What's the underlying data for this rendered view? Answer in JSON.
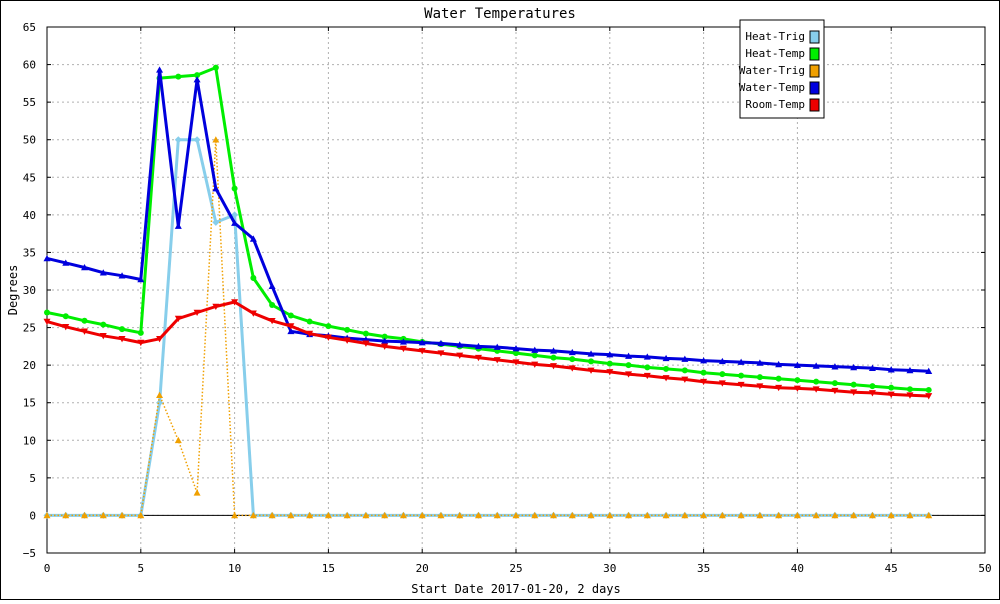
{
  "chart_data": {
    "type": "line",
    "title": "Water Temperatures",
    "xlabel": "Start Date 2017-01-20, 2 days",
    "ylabel": "Degrees",
    "xlim": [
      0,
      50
    ],
    "ylim": [
      -5,
      65
    ],
    "x_ticks": [
      0,
      5,
      10,
      15,
      20,
      25,
      30,
      35,
      40,
      45,
      50
    ],
    "y_ticks": [
      -5,
      0,
      5,
      10,
      15,
      20,
      25,
      30,
      35,
      40,
      45,
      50,
      55,
      60,
      65
    ],
    "grid": true,
    "legend_position": "top-right",
    "series": [
      {
        "name": "Heat-Trig",
        "color": "#87ceeb",
        "line_style": "solid",
        "marker": "diamond",
        "x": [
          0,
          1,
          2,
          3,
          4,
          5,
          6,
          7,
          8,
          9,
          10,
          11,
          12,
          13,
          14,
          15,
          16,
          17,
          18,
          19,
          20,
          21,
          22,
          23,
          24,
          25,
          26,
          27,
          28,
          29,
          30,
          31,
          32,
          33,
          34,
          35,
          36,
          37,
          38,
          39,
          40,
          41,
          42,
          43,
          44,
          45,
          46,
          47
        ],
        "values": [
          0,
          0,
          0,
          0,
          0,
          0,
          15,
          50,
          50,
          39,
          40,
          0,
          0,
          0,
          0,
          0,
          0,
          0,
          0,
          0,
          0,
          0,
          0,
          0,
          0,
          0,
          0,
          0,
          0,
          0,
          0,
          0,
          0,
          0,
          0,
          0,
          0,
          0,
          0,
          0,
          0,
          0,
          0,
          0,
          0,
          0,
          0,
          0
        ]
      },
      {
        "name": "Heat-Temp",
        "color": "#00ee00",
        "line_style": "solid",
        "marker": "circle",
        "x": [
          0,
          1,
          2,
          3,
          4,
          5,
          6,
          7,
          8,
          9,
          10,
          11,
          12,
          13,
          14,
          15,
          16,
          17,
          18,
          19,
          20,
          21,
          22,
          23,
          24,
          25,
          26,
          27,
          28,
          29,
          30,
          31,
          32,
          33,
          34,
          35,
          36,
          37,
          38,
          39,
          40,
          41,
          42,
          43,
          44,
          45,
          46,
          47
        ],
        "values": [
          27.0,
          26.5,
          25.9,
          25.4,
          24.8,
          24.3,
          58.2,
          58.4,
          58.6,
          59.6,
          43.5,
          31.6,
          28.0,
          26.6,
          25.8,
          25.2,
          24.7,
          24.2,
          23.8,
          23.5,
          23.1,
          22.8,
          22.5,
          22.2,
          21.9,
          21.6,
          21.3,
          21.0,
          20.8,
          20.5,
          20.2,
          20.0,
          19.7,
          19.5,
          19.3,
          19.0,
          18.8,
          18.6,
          18.4,
          18.2,
          18.0,
          17.8,
          17.6,
          17.4,
          17.2,
          17.0,
          16.8,
          16.7
        ]
      },
      {
        "name": "Water-Trig",
        "color": "#f0a000",
        "line_style": "dotted",
        "marker": "triangle-up",
        "x": [
          0,
          1,
          2,
          3,
          4,
          5,
          6,
          7,
          8,
          9,
          10,
          11,
          12,
          13,
          14,
          15,
          16,
          17,
          18,
          19,
          20,
          21,
          22,
          23,
          24,
          25,
          26,
          27,
          28,
          29,
          30,
          31,
          32,
          33,
          34,
          35,
          36,
          37,
          38,
          39,
          40,
          41,
          42,
          43,
          44,
          45,
          46,
          47
        ],
        "values": [
          0,
          0,
          0,
          0,
          0,
          0,
          16,
          10,
          3,
          50,
          0,
          0,
          0,
          0,
          0,
          0,
          0,
          0,
          0,
          0,
          0,
          0,
          0,
          0,
          0,
          0,
          0,
          0,
          0,
          0,
          0,
          0,
          0,
          0,
          0,
          0,
          0,
          0,
          0,
          0,
          0,
          0,
          0,
          0,
          0,
          0,
          0,
          0
        ]
      },
      {
        "name": "Water-Temp",
        "color": "#0000dd",
        "line_style": "solid",
        "marker": "triangle-up",
        "x": [
          0,
          1,
          2,
          3,
          4,
          5,
          6,
          7,
          8,
          9,
          10,
          11,
          12,
          13,
          14,
          15,
          16,
          17,
          18,
          19,
          20,
          21,
          22,
          23,
          24,
          25,
          26,
          27,
          28,
          29,
          30,
          31,
          32,
          33,
          34,
          35,
          36,
          37,
          38,
          39,
          40,
          41,
          42,
          43,
          44,
          45,
          46,
          47
        ],
        "values": [
          34.2,
          33.6,
          33.0,
          32.3,
          31.9,
          31.4,
          59.3,
          38.5,
          58.0,
          43.5,
          38.9,
          36.8,
          30.5,
          24.5,
          24.1,
          23.9,
          23.6,
          23.4,
          23.2,
          23.1,
          23.0,
          22.9,
          22.7,
          22.5,
          22.4,
          22.2,
          22.0,
          21.9,
          21.7,
          21.5,
          21.4,
          21.2,
          21.1,
          20.9,
          20.8,
          20.6,
          20.5,
          20.4,
          20.3,
          20.1,
          20.0,
          19.9,
          19.8,
          19.7,
          19.6,
          19.4,
          19.3,
          19.2
        ]
      },
      {
        "name": "Room-Temp",
        "color": "#ee0000",
        "line_style": "solid",
        "marker": "triangle-down",
        "x": [
          0,
          1,
          2,
          3,
          4,
          5,
          6,
          7,
          8,
          9,
          10,
          11,
          12,
          13,
          14,
          15,
          16,
          17,
          18,
          19,
          20,
          21,
          22,
          23,
          24,
          25,
          26,
          27,
          28,
          29,
          30,
          31,
          32,
          33,
          34,
          35,
          36,
          37,
          38,
          39,
          40,
          41,
          42,
          43,
          44,
          45,
          46,
          47
        ],
        "values": [
          25.8,
          25.1,
          24.5,
          23.9,
          23.5,
          23.0,
          23.5,
          26.2,
          27.0,
          27.8,
          28.4,
          26.9,
          25.9,
          25.2,
          24.2,
          23.7,
          23.3,
          22.9,
          22.5,
          22.2,
          21.9,
          21.6,
          21.3,
          21.0,
          20.7,
          20.4,
          20.1,
          19.9,
          19.6,
          19.3,
          19.1,
          18.8,
          18.6,
          18.3,
          18.1,
          17.8,
          17.6,
          17.4,
          17.2,
          17.0,
          16.9,
          16.8,
          16.6,
          16.4,
          16.3,
          16.1,
          16.0,
          15.9
        ]
      }
    ]
  }
}
